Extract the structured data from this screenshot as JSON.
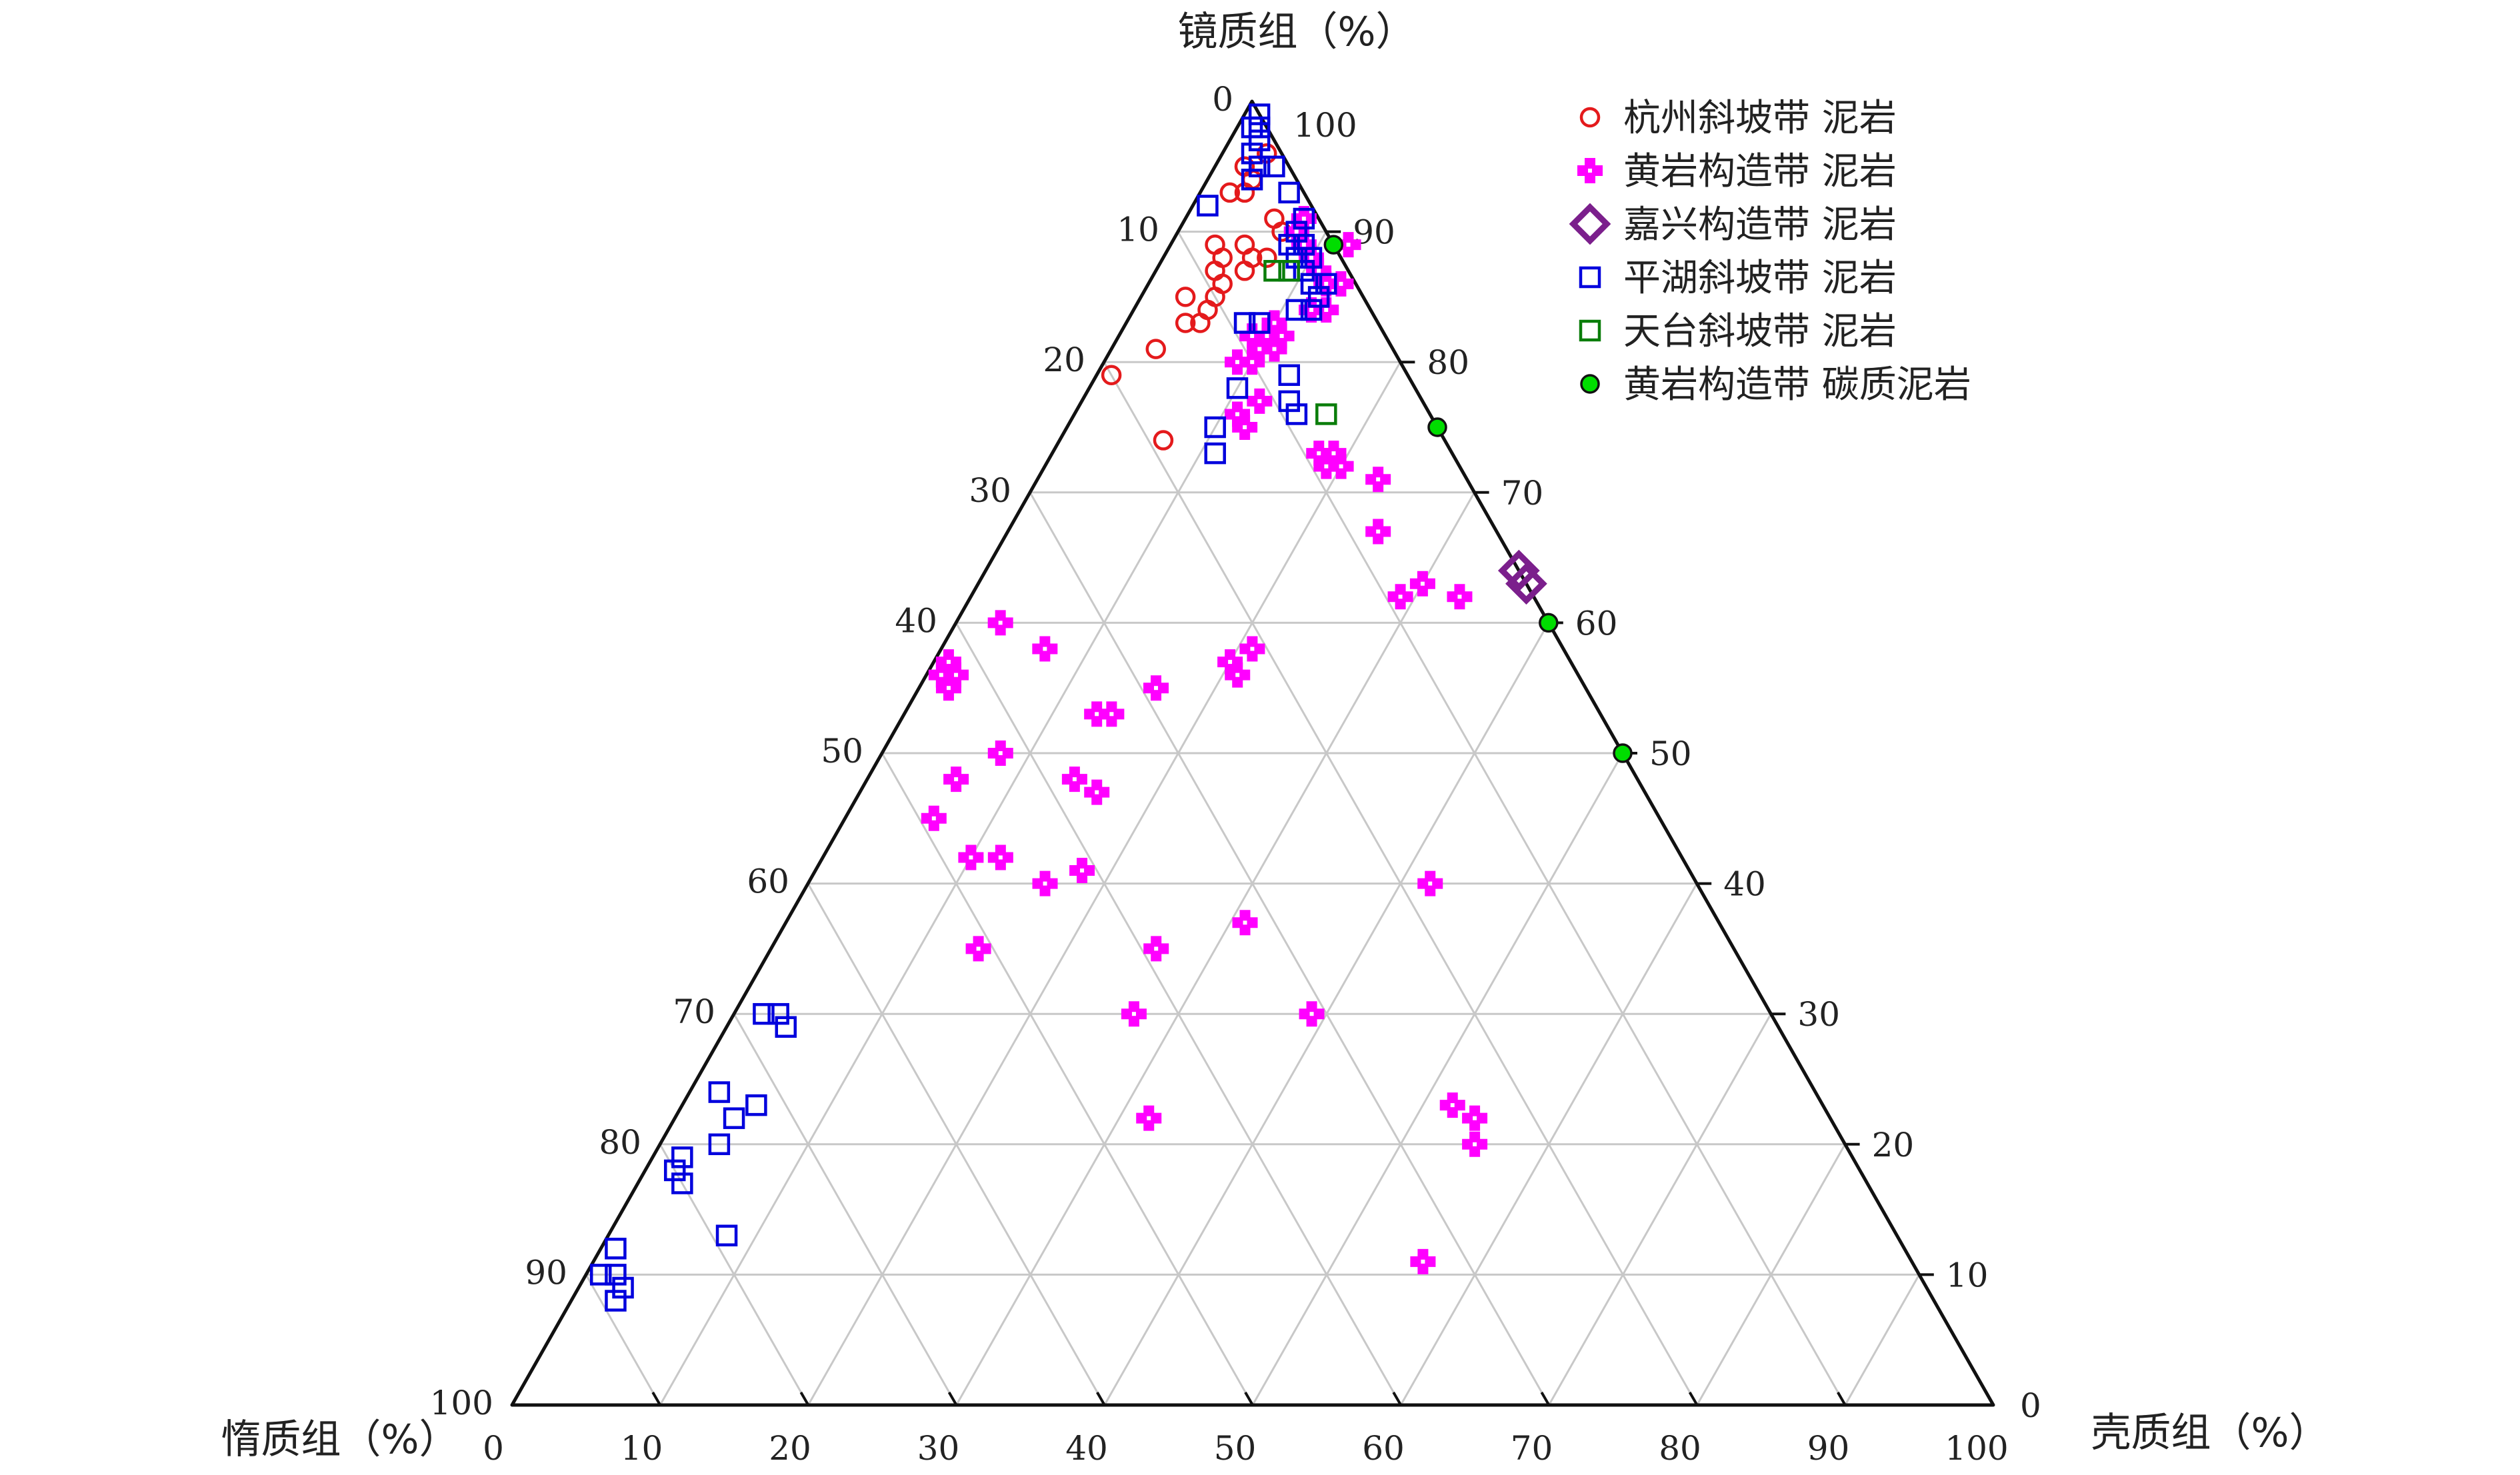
{
  "chart_data": {
    "type": "scatter",
    "subtype": "ternary",
    "axes": {
      "top": {
        "label": "镜质组（%）",
        "ticks": [
          "0",
          "10",
          "20",
          "30",
          "40",
          "50",
          "60",
          "70",
          "80",
          "90",
          "100"
        ]
      },
      "left": {
        "label": "惰质组（%）",
        "ticks": [
          "10",
          "20",
          "30",
          "40",
          "50",
          "60",
          "70",
          "80",
          "90",
          "100"
        ]
      },
      "right": {
        "label": "壳质组（%）",
        "ticks": [
          "0",
          "10",
          "20",
          "30",
          "40",
          "50",
          "60",
          "70",
          "80",
          "90",
          "100"
        ]
      },
      "bottom_ticks": [
        "0",
        "10",
        "20",
        "30",
        "40",
        "50",
        "60",
        "70",
        "80",
        "90",
        "100"
      ]
    },
    "grid": true,
    "grid_step": 10,
    "legend_position": "top-right",
    "series": [
      {
        "name": "杭州斜坡带 泥岩",
        "marker": "circle-open",
        "color": "#e41a1c",
        "points": [
          [
            96,
            3
          ],
          [
            95,
            2
          ],
          [
            94,
            3
          ],
          [
            93,
            2
          ],
          [
            93,
            3
          ],
          [
            91,
            6
          ],
          [
            90,
            7
          ],
          [
            89,
            5
          ],
          [
            89,
            3
          ],
          [
            88,
            6
          ],
          [
            88,
            7
          ],
          [
            88,
            4
          ],
          [
            87,
            4
          ],
          [
            87,
            6
          ],
          [
            86,
            5
          ],
          [
            85,
            3
          ],
          [
            85,
            5
          ],
          [
            84,
            5
          ],
          [
            83,
            4
          ],
          [
            83,
            5
          ],
          [
            81,
            3
          ],
          [
            79,
            1
          ],
          [
            74,
            7
          ]
        ]
      },
      {
        "name": "黄岩构造带 泥岩",
        "marker": "plus-thick",
        "color": "#ff00ff",
        "points": [
          [
            91,
            8
          ],
          [
            90,
            8
          ],
          [
            89,
            9
          ],
          [
            88,
            10
          ],
          [
            89,
            12
          ],
          [
            87,
            11
          ],
          [
            86,
            12
          ],
          [
            86,
            13
          ],
          [
            84,
            12
          ],
          [
            84,
            13
          ],
          [
            83,
            10
          ],
          [
            82,
            9
          ],
          [
            82,
            10
          ],
          [
            82,
            11
          ],
          [
            81,
            10
          ],
          [
            81,
            11
          ],
          [
            80,
            10
          ],
          [
            80,
            9
          ],
          [
            77,
            12
          ],
          [
            76,
            11
          ],
          [
            75,
            12
          ],
          [
            73,
            18
          ],
          [
            72,
            20
          ],
          [
            73,
            19
          ],
          [
            72,
            19
          ],
          [
            71,
            23
          ],
          [
            67,
            25
          ],
          [
            62,
            33
          ],
          [
            63,
            30
          ],
          [
            62,
            29
          ],
          [
            58,
            21
          ],
          [
            57,
            20
          ],
          [
            56,
            21
          ],
          [
            53,
            13
          ],
          [
            53,
            14
          ],
          [
            55,
            16
          ],
          [
            55,
            2
          ],
          [
            56,
            1
          ],
          [
            56,
            2
          ],
          [
            57,
            1
          ],
          [
            60,
            3
          ],
          [
            58,
            7
          ],
          [
            50,
            8
          ],
          [
            48,
            6
          ],
          [
            48,
            14
          ],
          [
            47,
            16
          ],
          [
            45,
            6
          ],
          [
            42,
            10
          ],
          [
            42,
            12
          ],
          [
            41,
            18
          ],
          [
            40,
            42
          ],
          [
            40,
            16
          ],
          [
            37,
            31
          ],
          [
            35,
            14
          ],
          [
            35,
            26
          ],
          [
            30,
            27
          ],
          [
            30,
            39
          ],
          [
            23,
            52
          ],
          [
            22,
            32
          ],
          [
            22,
            54
          ],
          [
            20,
            55
          ],
          [
            11,
            56
          ]
        ]
      },
      {
        "name": "嘉兴构造带 泥岩",
        "marker": "diamond-open",
        "color": "#7b1f8c",
        "points": [
          [
            63,
            37
          ],
          [
            64,
            36
          ]
        ]
      },
      {
        "name": "平湖斜坡带 泥岩",
        "marker": "square-open",
        "color": "#0000dd",
        "points": [
          [
            99,
            1
          ],
          [
            98,
            1
          ],
          [
            98,
            1.5
          ],
          [
            97,
            2
          ],
          [
            96,
            2
          ],
          [
            95,
            3
          ],
          [
            95,
            4
          ],
          [
            94,
            3
          ],
          [
            93,
            6
          ],
          [
            92,
            1
          ],
          [
            91,
            8
          ],
          [
            90,
            8
          ],
          [
            89,
            8
          ],
          [
            89,
            9
          ],
          [
            88,
            9
          ],
          [
            88,
            10
          ],
          [
            87,
            9
          ],
          [
            87,
            10
          ],
          [
            86,
            12
          ],
          [
            86,
            11
          ],
          [
            85,
            12
          ],
          [
            84,
            11
          ],
          [
            84,
            12
          ],
          [
            83,
            8
          ],
          [
            83,
            9
          ],
          [
            79,
            13
          ],
          [
            78,
            10
          ],
          [
            77,
            14
          ],
          [
            76,
            15
          ],
          [
            75,
            10
          ],
          [
            73,
            11
          ],
          [
            30,
            2
          ],
          [
            30,
            3
          ],
          [
            29,
            4
          ],
          [
            24,
            2
          ],
          [
            22,
            4
          ],
          [
            23,
            5
          ],
          [
            18,
            2
          ],
          [
            19,
            2
          ],
          [
            17,
            3
          ],
          [
            20,
            4
          ],
          [
            13,
            8
          ],
          [
            12,
            1
          ],
          [
            10,
            1
          ],
          [
            10,
            2
          ],
          [
            9,
            3
          ],
          [
            8,
            3
          ]
        ]
      },
      {
        "name": "天台斜坡带 泥岩",
        "marker": "square-open",
        "color": "#0a7d0a",
        "points": [
          [
            87,
            9
          ],
          [
            87,
            8
          ],
          [
            76,
            17
          ]
        ]
      },
      {
        "name": "黄岩构造带 碳质泥岩",
        "marker": "circle-filled",
        "color": "#00dd00",
        "points": [
          [
            89,
            11
          ],
          [
            75,
            25
          ],
          [
            60,
            40
          ],
          [
            50,
            50
          ]
        ]
      }
    ]
  }
}
